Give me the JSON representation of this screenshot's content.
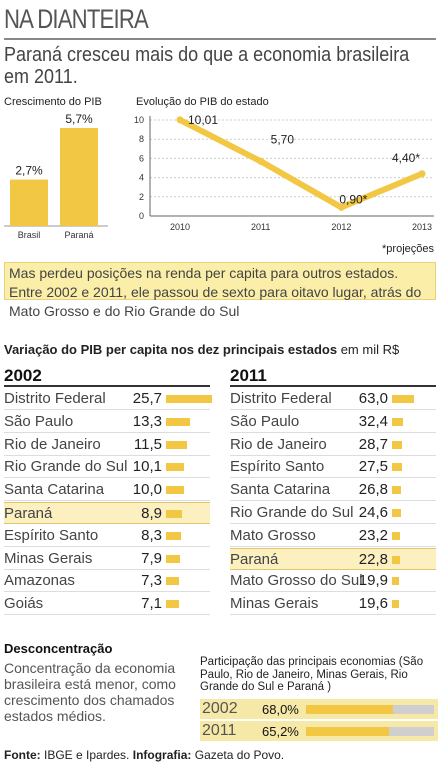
{
  "header": {
    "title": "NA DIANTEIRA",
    "subtitle_line1": "Paraná cresceu mais do que a economia brasileira",
    "subtitle_line2": "em 2011."
  },
  "chart_data": [
    {
      "type": "bar",
      "title": "Crescimento do PIB",
      "categories": [
        "Brasil",
        "Paraná"
      ],
      "values": [
        2.7,
        5.7
      ],
      "value_labels": [
        "2,7%",
        "5,7%"
      ],
      "color": "#f2c744"
    },
    {
      "type": "line",
      "title": "Evolução do PIB do estado",
      "x": [
        "2010",
        "2011",
        "2012",
        "2013"
      ],
      "values": [
        10.01,
        5.7,
        0.9,
        4.4
      ],
      "value_labels": [
        "10,01",
        "5,70",
        "0,90*",
        "4,40*"
      ],
      "yticks": [
        "10",
        "8",
        "6",
        "4",
        "2",
        "0"
      ],
      "ylim": [
        0,
        10
      ],
      "footnote": "*projeções",
      "color": "#f2c744"
    },
    {
      "type": "bar",
      "title": "Variação do PIB per capita nos dez principais estados",
      "unit": "em mil R$",
      "year": "2002",
      "categories": [
        "Distrito Federal",
        "São Paulo",
        "Rio de Janeiro",
        "Rio Grande do Sul",
        "Santa Catarina",
        "Paraná",
        "Espírito Santo",
        "Minas Gerais",
        "Amazonas",
        "Goiás"
      ],
      "values": [
        25.7,
        13.3,
        11.5,
        10.1,
        10.0,
        8.9,
        8.3,
        7.9,
        7.3,
        7.1
      ],
      "value_labels": [
        "25,7",
        "13,3",
        "11,5",
        "10,1",
        "10,0",
        "8,9",
        "8,3",
        "7,9",
        "7,3",
        "7,1"
      ],
      "highlight": "Paraná"
    },
    {
      "type": "bar",
      "year": "2011",
      "categories": [
        "Distrito Federal",
        "São Paulo",
        "Rio de Janeiro",
        "Espírito Santo",
        "Santa Catarina",
        "Rio Grande do Sul",
        "Mato Grosso",
        "Paraná",
        "Mato Grosso do Sul",
        "Minas Gerais"
      ],
      "values": [
        63.0,
        32.4,
        28.7,
        27.5,
        26.8,
        24.6,
        23.2,
        22.8,
        19.9,
        19.6
      ],
      "value_labels": [
        "63,0",
        "32,4",
        "28,7",
        "27,5",
        "26,8",
        "24,6",
        "23,2",
        "22,8",
        "19,9",
        "19,6"
      ],
      "highlight": "Paraná"
    },
    {
      "type": "bar",
      "title": "Participação das principais economias (São Paulo, Rio de Janeiro, Minas Gerais, Rio Grande do Sul e Paraná )",
      "categories": [
        "2002",
        "2011"
      ],
      "values": [
        68.0,
        65.2
      ],
      "value_labels": [
        "68,0%",
        "65,2%"
      ],
      "ylim": [
        0,
        100
      ]
    }
  ],
  "info": {
    "text": "Mas perdeu posições na renda per capita para outros estados. Entre 2002 e 2011, ele passou de sexto para oitavo lugar, atrás do Mato Grosso e do Rio Grande do Sul"
  },
  "section": {
    "heading_bold": "Variação do PIB per capita nos dez principais estados",
    "heading_unit": "em mil R$"
  },
  "desconcentracao": {
    "heading": "Desconcentração",
    "text": "Concentração da economia brasileira está menor, como crescimento dos chamados estados médios."
  },
  "footer": {
    "fonte_label": "Fonte:",
    "fonte_text": "IBGE e Ipardes.",
    "info_label": "Infografia:",
    "info_text": "Gazeta do Povo."
  }
}
